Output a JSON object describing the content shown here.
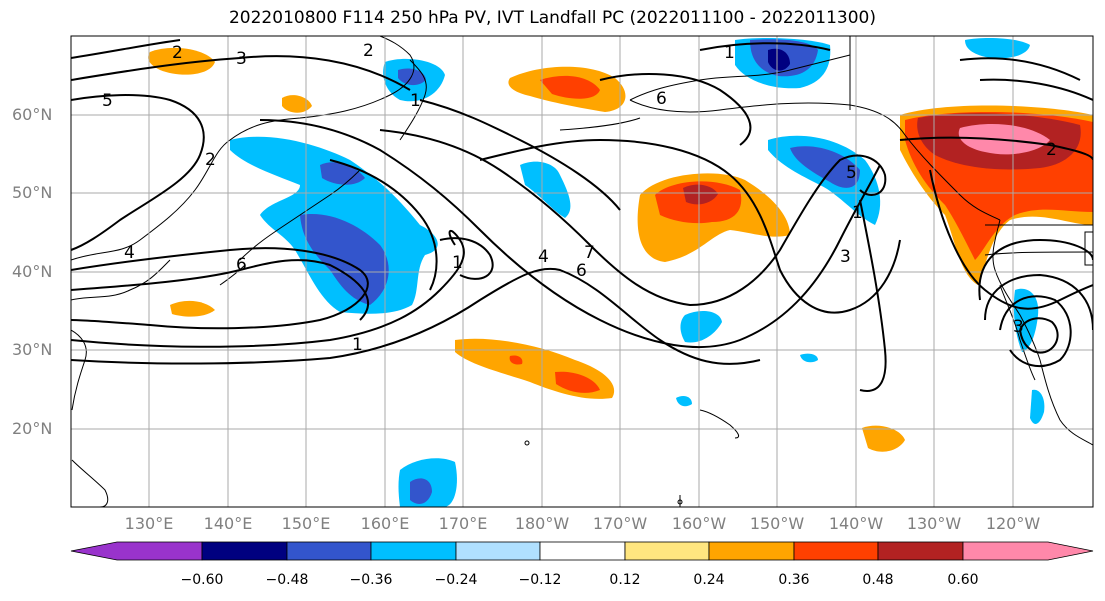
{
  "title": "2022010800 F114 250 hPa PV, IVT Landfall PC (2022011100 - 2022011300)",
  "map": {
    "type": "filled-contour map with line contours",
    "projection": "Plate Carree",
    "lon_range": [
      120,
      -112
    ],
    "lat_range": [
      10,
      70
    ],
    "lat_labels": [
      "60°N",
      "50°N",
      "40°N",
      "30°N",
      "20°N"
    ],
    "lon_labels": [
      "130°E",
      "140°E",
      "150°E",
      "160°E",
      "170°E",
      "180°W",
      "170°W",
      "160°W",
      "150°W",
      "140°W",
      "130°W",
      "120°W"
    ],
    "contour_labels": [
      "2",
      "3",
      "5",
      "2",
      "1",
      "6",
      "4",
      "2",
      "1",
      "4",
      "1",
      "7",
      "6",
      "1",
      "6",
      "5",
      "3",
      "1",
      "2",
      "3"
    ],
    "colorbar": {
      "ticks": [
        "−0.60",
        "−0.48",
        "−0.36",
        "−0.24",
        "−0.12",
        "0.12",
        "0.24",
        "0.36",
        "0.48",
        "0.60"
      ],
      "colors": [
        "#9933cc",
        "#000080",
        "#3355cc",
        "#00bfff",
        "#b0e0ff",
        "#ffffff",
        "#ffe680",
        "#ffa500",
        "#ff4000",
        "#b22222",
        "#ff88aa"
      ]
    }
  }
}
